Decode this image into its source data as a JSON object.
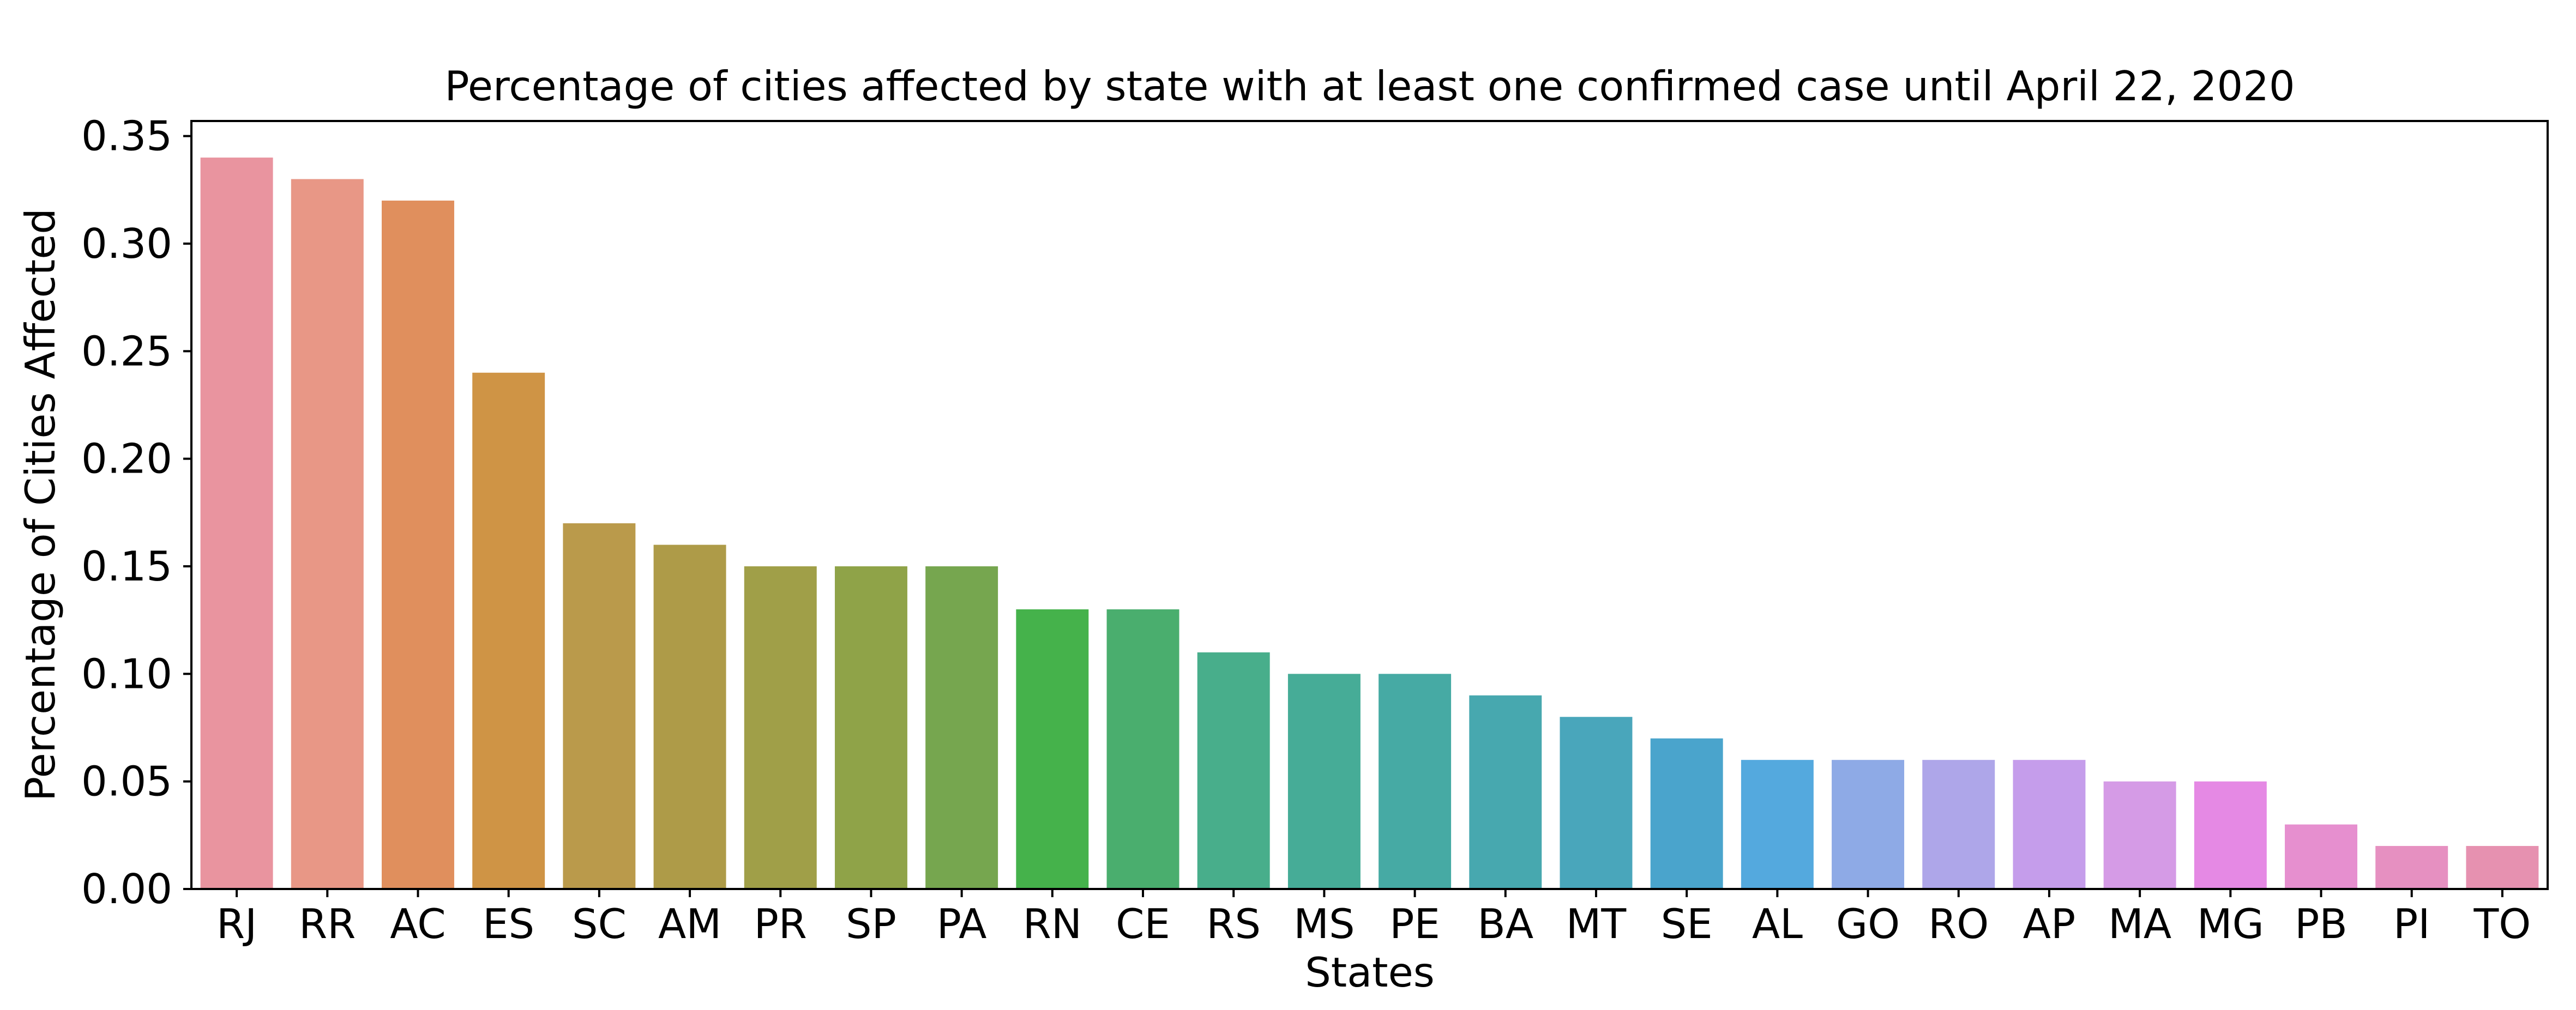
{
  "chart_data": {
    "type": "bar",
    "title": "Percentage of cities affected by state with at least one confirmed case until April 22, 2020",
    "xlabel": "States",
    "ylabel": "Percentage of Cities Affected",
    "ylim": [
      0,
      0.357
    ],
    "yticks": [
      "0.00",
      "0.05",
      "0.10",
      "0.15",
      "0.20",
      "0.25",
      "0.30",
      "0.35"
    ],
    "grid": false,
    "categories": [
      "RJ",
      "RR",
      "AC",
      "ES",
      "SC",
      "AM",
      "PR",
      "SP",
      "PA",
      "RN",
      "CE",
      "RS",
      "MS",
      "PE",
      "BA",
      "MT",
      "SE",
      "AL",
      "GO",
      "RO",
      "AP",
      "MA",
      "MG",
      "PB",
      "PI",
      "TO"
    ],
    "values": [
      0.34,
      0.33,
      0.32,
      0.24,
      0.17,
      0.16,
      0.15,
      0.15,
      0.15,
      0.13,
      0.13,
      0.11,
      0.1,
      0.1,
      0.09,
      0.08,
      0.07,
      0.06,
      0.06,
      0.06,
      0.06,
      0.05,
      0.05,
      0.03,
      0.02,
      0.02
    ],
    "colors": [
      "#e9949f",
      "#e89786",
      "#e08f5d",
      "#cf9445",
      "#ba9a4b",
      "#ae9b48",
      "#a09f48",
      "#8fa348",
      "#76a64f",
      "#45b24b",
      "#4aae6e",
      "#48ae8b",
      "#46ac97",
      "#46aaa4",
      "#47a8af",
      "#49a6bb",
      "#4aa4cc",
      "#54a9de",
      "#8eaae6",
      "#aea6e9",
      "#c59deb",
      "#d59be6",
      "#e589e4",
      "#e68fcf",
      "#e690c1",
      "#e691b0"
    ]
  }
}
